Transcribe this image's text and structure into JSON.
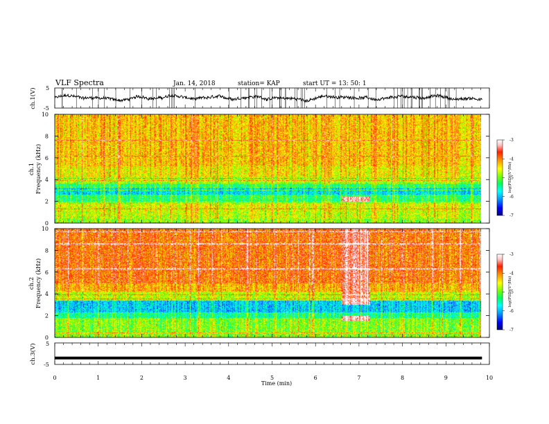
{
  "header": {
    "title": "VLF Spectra",
    "date": "Jan. 14, 2018",
    "station": "station= KAP",
    "start": "start UT =  13: 50: 1"
  },
  "colors": {
    "spectrogram_scale": [
      "#000080",
      "#0000ff",
      "#00a0ff",
      "#00ffff",
      "#00ff60",
      "#80ff00",
      "#ffff00",
      "#ff8000",
      "#ff2000",
      "#ffc0c0",
      "#ffffff"
    ],
    "trace": "#000000"
  },
  "chart_data": [
    {
      "type": "line",
      "panel": "ch1-waveform",
      "ylabel": "ch.1(V)",
      "yticks": [
        "5",
        "-5"
      ],
      "ylim": [
        -5,
        5
      ],
      "xlim": [
        0,
        10
      ],
      "description_values": {
        "mean": 0,
        "range_approx": [
          -2,
          2
        ],
        "end_time_min": 9.83
      }
    },
    {
      "type": "heatmap",
      "panel": "ch1-spectrogram",
      "ylabel_line1": "ch.1",
      "ylabel_line2": "Frequency (kHz)",
      "yticks": [
        "0",
        "2",
        "4",
        "6",
        "8",
        "10"
      ],
      "ylim": [
        0,
        10
      ],
      "xlim": [
        0,
        10
      ],
      "colorbar": {
        "label": "log(PSD)(V²/Hz)",
        "ticks": [
          "-3",
          "-4",
          "-5",
          "-6",
          "-7"
        ],
        "range": [
          -7,
          -3
        ]
      },
      "bands": [
        {
          "f_low": 0,
          "f_high": 0.4,
          "level": -4.9
        },
        {
          "f_low": 0.4,
          "f_high": 1.1,
          "level": -4.7
        },
        {
          "f_low": 1.1,
          "f_high": 1.8,
          "level": -4.6
        },
        {
          "f_low": 1.8,
          "f_high": 2.0,
          "level": -4.9
        },
        {
          "f_low": 2.0,
          "f_high": 2.6,
          "level": -5.3
        },
        {
          "f_low": 2.6,
          "f_high": 3.3,
          "level": -5.8
        },
        {
          "f_low": 3.3,
          "f_high": 3.6,
          "level": -5.3
        },
        {
          "f_low": 3.6,
          "f_high": 4.2,
          "level": -4.8
        },
        {
          "f_low": 4.2,
          "f_high": 5.2,
          "level": -4.5
        },
        {
          "f_low": 5.2,
          "f_high": 10,
          "level": -4.3
        }
      ],
      "events": [
        {
          "t_start": 6.6,
          "t_end": 7.25,
          "f_low": 2.0,
          "f_high": 2.4,
          "level": -3.3
        }
      ]
    },
    {
      "type": "heatmap",
      "panel": "ch2-spectrogram",
      "ylabel_line1": "ch.2",
      "ylabel_line2": "Frequency (kHz)",
      "yticks": [
        "0",
        "2",
        "4",
        "6",
        "8",
        "10"
      ],
      "ylim": [
        0,
        10
      ],
      "xlim": [
        0,
        10
      ],
      "colorbar": {
        "label": "log(PSD)(V²/Hz)",
        "ticks": [
          "-3",
          "-4",
          "-5",
          "-6",
          "-7"
        ],
        "range": [
          -7,
          -3
        ]
      },
      "bands": [
        {
          "f_low": 0,
          "f_high": 0.4,
          "level": -4.9
        },
        {
          "f_low": 0.4,
          "f_high": 1.8,
          "level": -4.9
        },
        {
          "f_low": 1.8,
          "f_high": 2.2,
          "level": -5.4
        },
        {
          "f_low": 2.2,
          "f_high": 3.4,
          "level": -5.9
        },
        {
          "f_low": 3.4,
          "f_high": 4.2,
          "level": -4.7
        },
        {
          "f_low": 4.2,
          "f_high": 5.0,
          "level": -4.2
        },
        {
          "f_low": 5.0,
          "f_high": 10,
          "level": -3.9
        }
      ],
      "events": [
        {
          "t_start": 6.6,
          "t_end": 7.25,
          "f_low": 1.5,
          "f_high": 2.0,
          "level": -3.2
        },
        {
          "t_start": 6.6,
          "t_end": 7.25,
          "f_low": 3.0,
          "f_high": 3.5,
          "level": -3.2
        },
        {
          "t_start": 6.6,
          "t_end": 7.25,
          "f_low": 3.5,
          "f_high": 10,
          "level": -3.4
        }
      ]
    },
    {
      "type": "line",
      "panel": "ch3-waveform",
      "ylabel": "ch.3(V)",
      "yticks": [
        "5",
        "-5"
      ],
      "ylim": [
        -5,
        5
      ],
      "xlim": [
        0,
        10
      ],
      "description_values": {
        "constant_level": -2,
        "end_time_min": 9.83
      }
    }
  ],
  "xaxis": {
    "label": "Time (min)",
    "ticks": [
      "0",
      "1",
      "2",
      "3",
      "4",
      "5",
      "6",
      "7",
      "8",
      "9",
      "10"
    ]
  }
}
